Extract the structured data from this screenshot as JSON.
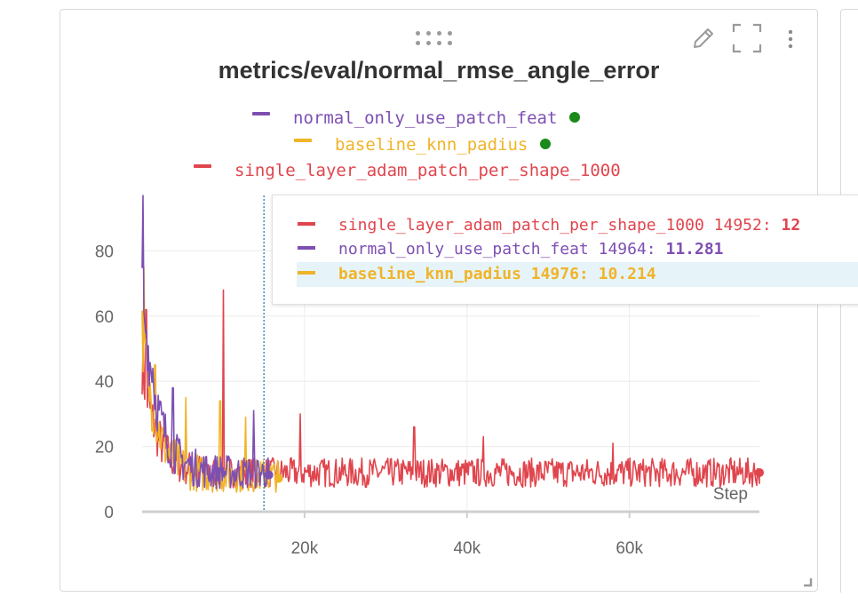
{
  "panel": {
    "title": "metrics/eval/normal_rmse_angle_error",
    "icons": [
      "drag-handle-icon",
      "edit-pencil-icon",
      "fullscreen-icon",
      "more-vert-icon"
    ]
  },
  "legend": [
    {
      "name": "normal_only_use_patch_feat",
      "color": "#7e4fb2",
      "dot": true
    },
    {
      "name": "baseline_knn_padius",
      "color": "#f0b429",
      "dot": true
    },
    {
      "name": "single_layer_adam_patch_per_shape_1000",
      "color": "#e0454d",
      "dot": false
    }
  ],
  "tooltip": {
    "rows": [
      {
        "name": "single_layer_adam_patch_per_shape_1000",
        "step": "14952:",
        "value": "12",
        "color": "#e0454d",
        "highlight": false,
        "bold_value": false
      },
      {
        "name": "normal_only_use_patch_feat",
        "step": "14964:",
        "value": "11.281",
        "color": "#7e4fb2",
        "highlight": false,
        "bold_value": true
      },
      {
        "name": "baseline_knn_padius",
        "step": "14976:",
        "value": "10.214",
        "color": "#f0b429",
        "highlight": true,
        "bold_value": true
      }
    ]
  },
  "chart_data": {
    "type": "line",
    "title": "metrics/eval/normal_rmse_angle_error",
    "xlabel": "Step",
    "ylabel": "",
    "xlim": [
      0,
      76000
    ],
    "ylim": [
      0,
      97
    ],
    "x_ticks": [
      20000,
      40000,
      60000
    ],
    "x_tick_labels": [
      "20k",
      "40k",
      "60k"
    ],
    "y_ticks": [
      0,
      20,
      40,
      60,
      80
    ],
    "y_tick_labels": [
      "0",
      "20",
      "40",
      "60",
      "80"
    ],
    "grid": true,
    "hover_step": 15000,
    "series": [
      {
        "name": "single_layer_adam_patch_per_shape_1000",
        "color": "#e0454d",
        "x_range": [
          0,
          76000
        ],
        "start_value": 45,
        "end_value": 12,
        "noise": 4.5,
        "spikes": [
          [
            500,
            62
          ],
          [
            10000,
            68
          ],
          [
            19500,
            30
          ],
          [
            33500,
            26
          ],
          [
            42000,
            23
          ],
          [
            58000,
            21
          ]
        ],
        "last_value": 12
      },
      {
        "name": "baseline_knn_padius",
        "color": "#f0b429",
        "x_range": [
          0,
          16800
        ],
        "start_value": 55,
        "end_value": 11,
        "noise": 5,
        "spikes": [
          [
            200,
            75
          ],
          [
            1600,
            45
          ],
          [
            5400,
            35
          ],
          [
            9600,
            34
          ],
          [
            12700,
            29
          ]
        ],
        "last_value": 10.214
      },
      {
        "name": "normal_only_use_patch_feat",
        "color": "#7e4fb2",
        "x_range": [
          0,
          15600
        ],
        "start_value": 70,
        "end_value": 12,
        "noise": 5,
        "spikes": [
          [
            100,
            97
          ],
          [
            300,
            58
          ],
          [
            1300,
            44
          ],
          [
            3800,
            38
          ],
          [
            13700,
            31
          ]
        ],
        "last_value": 11.281
      }
    ]
  }
}
